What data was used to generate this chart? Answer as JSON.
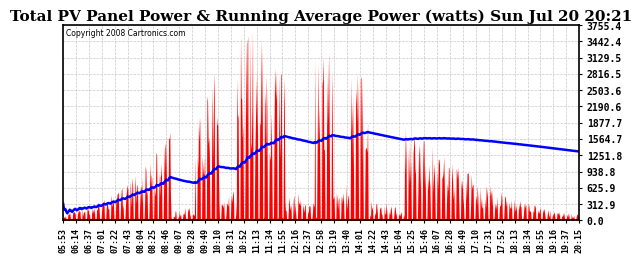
{
  "title": "Total PV Panel Power & Running Average Power (watts) Sun Jul 20 20:21",
  "copyright": "Copyright 2008 Cartronics.com",
  "yticks": [
    0.0,
    312.9,
    625.9,
    938.8,
    1251.8,
    1564.7,
    1877.7,
    2190.6,
    2503.6,
    2816.5,
    3129.5,
    3442.4,
    3755.4
  ],
  "ymax": 3755.4,
  "ymin": 0.0,
  "bg_color": "#ffffff",
  "plot_bg": "#ffffff",
  "grid_color": "#aaaaaa",
  "bar_color": "#ff0000",
  "line_color": "#0000ff",
  "title_fontsize": 11,
  "xtick_labels": [
    "05:53",
    "06:14",
    "06:37",
    "07:01",
    "07:22",
    "07:43",
    "08:04",
    "08:25",
    "08:46",
    "09:07",
    "09:28",
    "09:49",
    "10:10",
    "10:31",
    "10:52",
    "11:13",
    "11:34",
    "11:55",
    "12:16",
    "12:37",
    "12:58",
    "13:19",
    "13:40",
    "14:01",
    "14:22",
    "14:43",
    "15:04",
    "15:25",
    "15:46",
    "16:07",
    "16:28",
    "16:49",
    "17:10",
    "17:31",
    "17:52",
    "18:13",
    "18:34",
    "18:55",
    "19:16",
    "19:37",
    "20:15"
  ]
}
